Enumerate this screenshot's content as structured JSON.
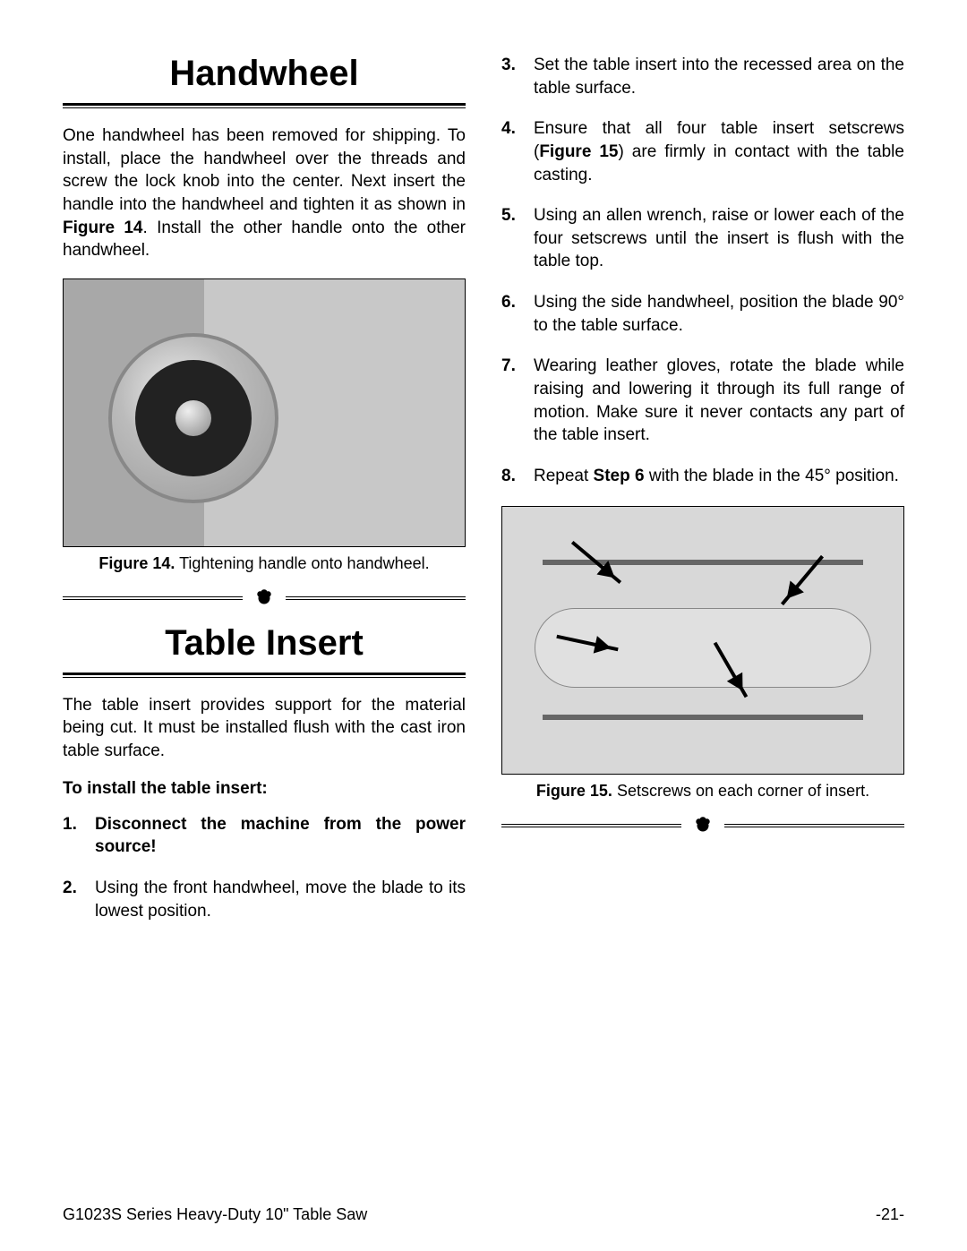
{
  "sections": {
    "handwheel": {
      "title": "Handwheel",
      "intro_parts": [
        "One handwheel has been removed for shipping. To install, place the handwheel over the threads and screw the lock knob into the center. Next insert the handle into the handwheel and tighten it as shown in ",
        "Figure 14",
        ". Install the other handle onto the other handwheel."
      ]
    },
    "table_insert": {
      "title": "Table Insert",
      "intro": "The table insert provides support for the material being cut. It must be installed flush with the cast iron table surface.",
      "subhead": "To install the table insert:"
    }
  },
  "figures": {
    "f14": {
      "label": "Figure 14.",
      "caption": "Tightening handle onto handwheel."
    },
    "f15": {
      "label": "Figure 15.",
      "caption": "Setscrews on each corner of insert."
    }
  },
  "steps_left": [
    {
      "num": "1.",
      "bold": true,
      "text": "Disconnect the machine from the power source!"
    },
    {
      "num": "2.",
      "bold": false,
      "text": "Using the front handwheel, move the blade to its lowest position."
    }
  ],
  "steps_right": [
    {
      "num": "3.",
      "pre": "Set the table insert into the recessed area on the table surface.",
      "bold_mid": "",
      "post": ""
    },
    {
      "num": "4.",
      "pre": "Ensure that all four table insert setscrews (",
      "bold_mid": "Figure 15",
      "post": ") are firmly in contact with the table casting."
    },
    {
      "num": "5.",
      "pre": "Using an allen wrench, raise or lower each of the four setscrews until the insert is flush with the table top.",
      "bold_mid": "",
      "post": ""
    },
    {
      "num": "6.",
      "pre": "Using the side handwheel, position the blade 90° to the table surface.",
      "bold_mid": "",
      "post": ""
    },
    {
      "num": "7.",
      "pre": "Wearing leather gloves, rotate the blade while raising and lowering it through its full range of motion. Make sure it never contacts any part of the table insert.",
      "bold_mid": "",
      "post": ""
    },
    {
      "num": "8.",
      "pre": "Repeat ",
      "bold_mid": "Step 6",
      "post": " with the blade in the 45° position."
    }
  ],
  "footer": {
    "left": "G1023S Series Heavy-Duty 10\" Table Saw",
    "right": "-21-"
  }
}
